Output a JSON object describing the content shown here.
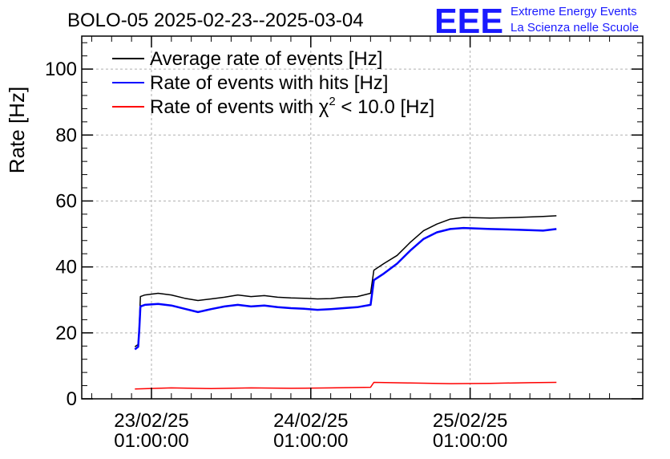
{
  "chart_data": {
    "type": "line",
    "title": "BOLO-05 2025-02-23--2025-03-04",
    "ylabel": "Rate [Hz]",
    "xlabel": "",
    "ylim": [
      0,
      110
    ],
    "xlim": [
      "2025-02-22 14:30:00",
      "2025-02-26 03:00:00"
    ],
    "yticks": [
      0,
      20,
      40,
      60,
      80,
      100
    ],
    "xticks": [
      {
        "t": "2025-02-23 01:00:00",
        "label_date": "23/02/25",
        "label_time": "01:00:00"
      },
      {
        "t": "2025-02-24 01:00:00",
        "label_date": "24/02/25",
        "label_time": "01:00:00"
      },
      {
        "t": "2025-02-25 01:00:00",
        "label_date": "25/02/25",
        "label_time": "01:00:00"
      }
    ],
    "grid": true,
    "legend_position": "top-left",
    "series": [
      {
        "name": "Average rate of events [Hz]",
        "color": "#000000",
        "points": [
          [
            "2025-02-22 22:30:00",
            15.8
          ],
          [
            "2025-02-22 23:00:00",
            16.5
          ],
          [
            "2025-02-22 23:10:00",
            22.0
          ],
          [
            "2025-02-22 23:20:00",
            31.0
          ],
          [
            "2025-02-23 00:00:00",
            31.5
          ],
          [
            "2025-02-23 02:00:00",
            32.0
          ],
          [
            "2025-02-23 04:00:00",
            31.5
          ],
          [
            "2025-02-23 06:00:00",
            30.5
          ],
          [
            "2025-02-23 08:00:00",
            29.8
          ],
          [
            "2025-02-23 10:00:00",
            30.3
          ],
          [
            "2025-02-23 12:00:00",
            30.8
          ],
          [
            "2025-02-23 14:00:00",
            31.5
          ],
          [
            "2025-02-23 16:00:00",
            31.0
          ],
          [
            "2025-02-23 18:00:00",
            31.3
          ],
          [
            "2025-02-23 20:00:00",
            30.8
          ],
          [
            "2025-02-23 22:00:00",
            30.6
          ],
          [
            "2025-02-24 00:00:00",
            30.5
          ],
          [
            "2025-02-24 02:00:00",
            30.3
          ],
          [
            "2025-02-24 04:00:00",
            30.4
          ],
          [
            "2025-02-24 06:00:00",
            30.8
          ],
          [
            "2025-02-24 08:00:00",
            31.0
          ],
          [
            "2025-02-24 10:00:00",
            32.0
          ],
          [
            "2025-02-24 10:30:00",
            39.0
          ],
          [
            "2025-02-24 12:00:00",
            41.0
          ],
          [
            "2025-02-24 14:00:00",
            43.5
          ],
          [
            "2025-02-24 16:00:00",
            47.5
          ],
          [
            "2025-02-24 18:00:00",
            51.0
          ],
          [
            "2025-02-24 20:00:00",
            53.0
          ],
          [
            "2025-02-24 22:00:00",
            54.5
          ],
          [
            "2025-02-25 00:00:00",
            55.0
          ],
          [
            "2025-02-25 04:00:00",
            54.8
          ],
          [
            "2025-02-25 08:00:00",
            55.0
          ],
          [
            "2025-02-25 12:00:00",
            55.3
          ],
          [
            "2025-02-25 14:00:00",
            55.5
          ]
        ]
      },
      {
        "name": "Rate of events with hits [Hz]",
        "color": "#0000ff",
        "points": [
          [
            "2025-02-22 22:30:00",
            15.0
          ],
          [
            "2025-02-22 23:00:00",
            15.8
          ],
          [
            "2025-02-22 23:10:00",
            21.0
          ],
          [
            "2025-02-22 23:20:00",
            28.0
          ],
          [
            "2025-02-23 00:00:00",
            28.5
          ],
          [
            "2025-02-23 02:00:00",
            28.8
          ],
          [
            "2025-02-23 04:00:00",
            28.3
          ],
          [
            "2025-02-23 06:00:00",
            27.3
          ],
          [
            "2025-02-23 08:00:00",
            26.3
          ],
          [
            "2025-02-23 10:00:00",
            27.2
          ],
          [
            "2025-02-23 12:00:00",
            28.0
          ],
          [
            "2025-02-23 14:00:00",
            28.5
          ],
          [
            "2025-02-23 16:00:00",
            28.0
          ],
          [
            "2025-02-23 18:00:00",
            28.3
          ],
          [
            "2025-02-23 20:00:00",
            27.8
          ],
          [
            "2025-02-23 22:00:00",
            27.5
          ],
          [
            "2025-02-24 00:00:00",
            27.3
          ],
          [
            "2025-02-24 02:00:00",
            27.0
          ],
          [
            "2025-02-24 04:00:00",
            27.2
          ],
          [
            "2025-02-24 06:00:00",
            27.5
          ],
          [
            "2025-02-24 08:00:00",
            27.8
          ],
          [
            "2025-02-24 10:00:00",
            28.5
          ],
          [
            "2025-02-24 10:30:00",
            36.0
          ],
          [
            "2025-02-24 12:00:00",
            38.0
          ],
          [
            "2025-02-24 14:00:00",
            41.0
          ],
          [
            "2025-02-24 16:00:00",
            45.0
          ],
          [
            "2025-02-24 18:00:00",
            48.5
          ],
          [
            "2025-02-24 20:00:00",
            50.5
          ],
          [
            "2025-02-24 22:00:00",
            51.5
          ],
          [
            "2025-02-25 00:00:00",
            51.8
          ],
          [
            "2025-02-25 04:00:00",
            51.5
          ],
          [
            "2025-02-25 08:00:00",
            51.3
          ],
          [
            "2025-02-25 12:00:00",
            51.0
          ],
          [
            "2025-02-25 14:00:00",
            51.5
          ]
        ]
      },
      {
        "name": "Rate of events with χ² < 10.0 [Hz]",
        "color": "#ff0000",
        "points": [
          [
            "2025-02-22 22:30:00",
            3.0
          ],
          [
            "2025-02-23 04:00:00",
            3.3
          ],
          [
            "2025-02-23 10:00:00",
            3.1
          ],
          [
            "2025-02-23 16:00:00",
            3.3
          ],
          [
            "2025-02-23 22:00:00",
            3.2
          ],
          [
            "2025-02-24 04:00:00",
            3.3
          ],
          [
            "2025-02-24 10:00:00",
            3.5
          ],
          [
            "2025-02-24 10:30:00",
            5.0
          ],
          [
            "2025-02-24 16:00:00",
            4.8
          ],
          [
            "2025-02-24 22:00:00",
            4.6
          ],
          [
            "2025-02-25 04:00:00",
            4.7
          ],
          [
            "2025-02-25 10:00:00",
            4.9
          ],
          [
            "2025-02-25 14:00:00",
            5.0
          ]
        ]
      }
    ]
  },
  "legend": {
    "avg_label": "Average rate of events [Hz]",
    "hits_label": "Rate of events with hits [Hz]",
    "chi2_prefix": "Rate of events with ",
    "chi2_symbol": "χ",
    "chi2_sup": "2",
    "chi2_suffix": " < 10.0 [Hz]"
  },
  "logo": {
    "mark": "EEE",
    "line1": "Extreme Energy Events",
    "line2": "La Scienza nelle Scuole",
    "color": "#1a1aff"
  }
}
